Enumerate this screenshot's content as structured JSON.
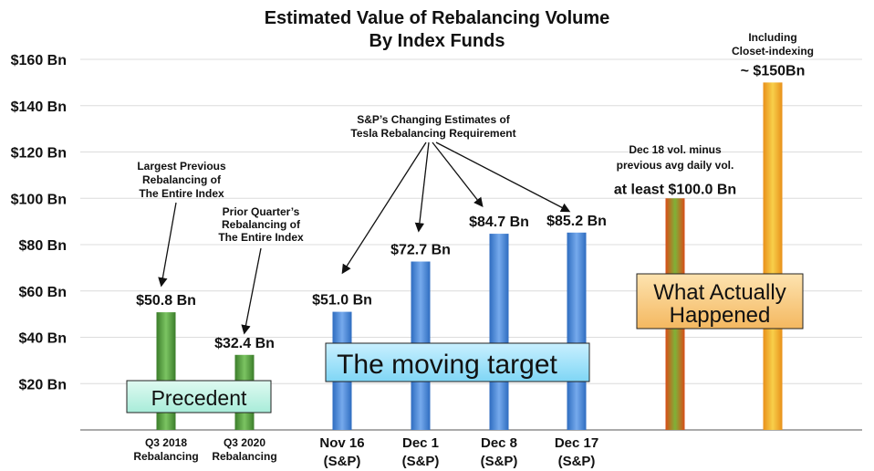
{
  "chart_data": {
    "type": "bar",
    "title": "Estimated Value of Rebalancing Volume",
    "subtitle": "By Index Funds",
    "ylim": [
      0,
      160
    ],
    "y_ticks": [
      "$20 Bn",
      "$40 Bn",
      "$60 Bn",
      "$80 Bn",
      "$100 Bn",
      "$120 Bn",
      "$140 Bn",
      "$160 Bn"
    ],
    "y_tick_values": [
      20,
      40,
      60,
      80,
      100,
      120,
      140,
      160
    ],
    "grid": true,
    "categories": [
      [
        "Q3 2018",
        "Rebalancing"
      ],
      [
        "Q3 2020",
        "Rebalancing"
      ],
      [
        "Nov 16",
        "(S&P)"
      ],
      [
        "Dec 1",
        "(S&P)"
      ],
      [
        "Dec 8",
        "(S&P)"
      ],
      [
        "Dec 17",
        "(S&P)"
      ],
      [
        "",
        ""
      ],
      [
        "",
        ""
      ]
    ],
    "values": [
      50.8,
      32.4,
      51.0,
      72.7,
      84.7,
      85.2,
      100.0,
      150.0
    ],
    "value_labels": [
      "$50.8  Bn",
      "$32.4  Bn",
      "$51.0 Bn",
      "$72.7 Bn",
      "$84.7 Bn",
      "$85.2 Bn",
      "at least $100.0 Bn",
      "~ $150Bn"
    ],
    "bar_colors": [
      "#4e9a3a",
      "#4e9a3a",
      "#3f7fd0",
      "#3f7fd0",
      "#3f7fd0",
      "#3f7fd0",
      "#b8641f",
      "#f0a81e"
    ],
    "annotations": {
      "largest_previous": [
        "Largest Previous",
        "Rebalancing of",
        "The Entire Index"
      ],
      "prior_quarter": [
        "Prior Quarter’s",
        "Rebalancing of",
        "The Entire Index"
      ],
      "sp_changing": [
        "S&P’s Changing Estimates of",
        "Tesla Rebalancing Requirement"
      ],
      "dec18": [
        "Dec 18 vol. minus",
        "previous avg daily vol."
      ],
      "closet": [
        "Including",
        "Closet-indexing"
      ]
    },
    "boxes": {
      "precedent": "Precedent",
      "moving_target": "The moving target",
      "what_happened": [
        "What Actually",
        "Happened"
      ]
    }
  }
}
